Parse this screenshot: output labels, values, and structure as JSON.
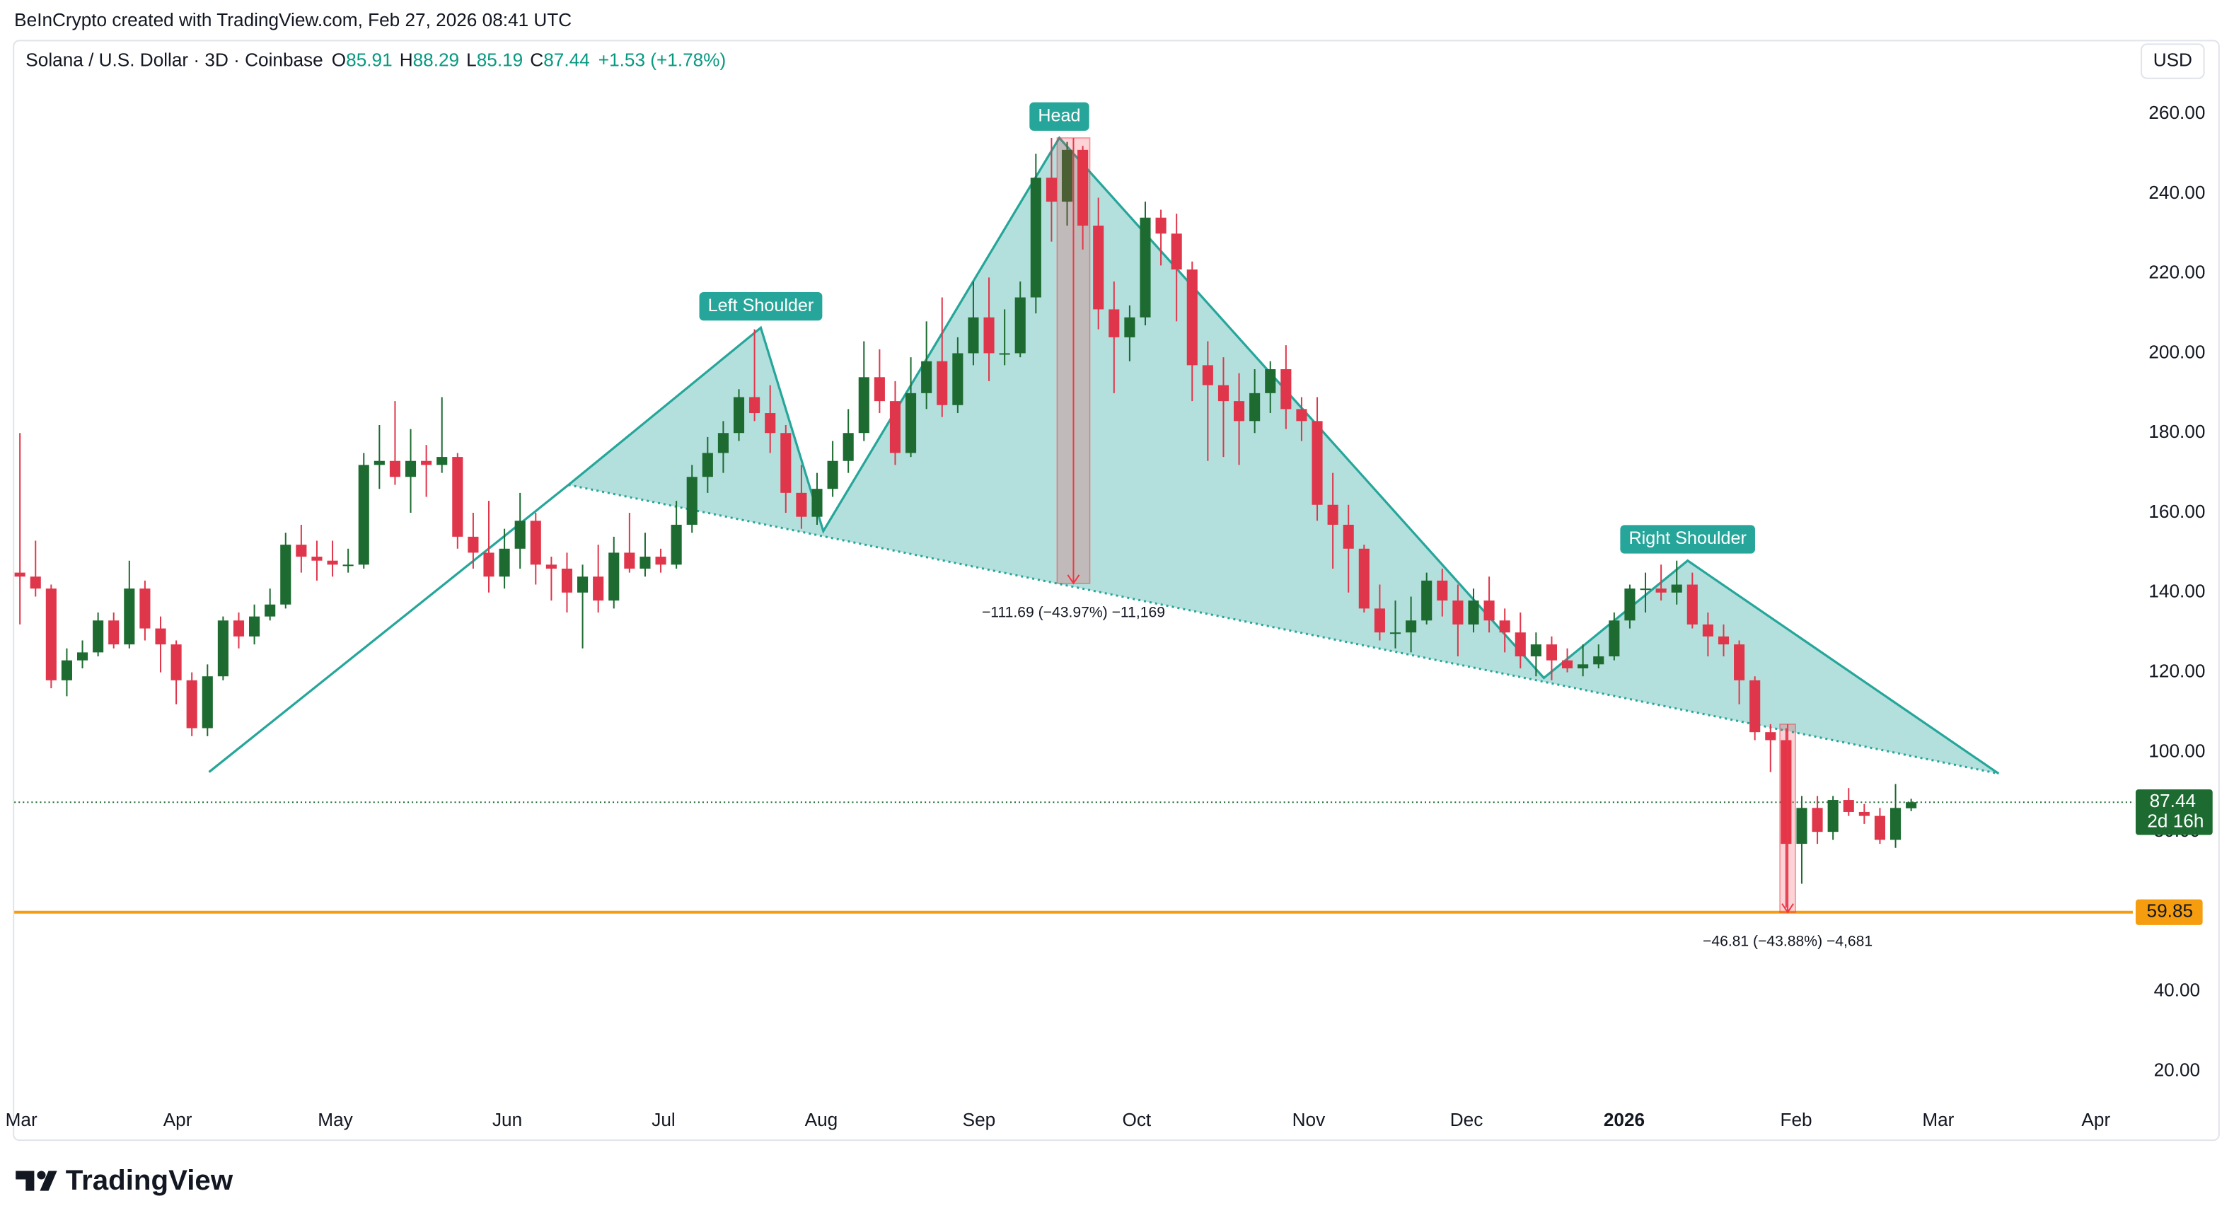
{
  "header": {
    "credit": "BeInCrypto created with TradingView.com, Feb 27, 2026 08:41 UTC",
    "logo": "TradingView"
  },
  "chart_data": {
    "type": "candlestick",
    "symbol": "Solana / U.S. Dollar · 3D · Coinbase",
    "ohlc_keys": [
      "O",
      "H",
      "L",
      "C"
    ],
    "change": "+1.53 (+1.78%)",
    "currency": "USD",
    "up_color": "#1d6b31",
    "down_color": "#e0364b",
    "candles": [
      [
        145,
        180,
        132,
        144
      ],
      [
        144,
        153,
        139,
        141
      ],
      [
        141,
        142,
        116,
        118
      ],
      [
        118,
        126,
        114,
        123
      ],
      [
        123,
        128,
        121,
        125
      ],
      [
        125,
        135,
        124,
        133
      ],
      [
        133,
        135,
        126,
        127
      ],
      [
        127,
        148,
        126,
        141
      ],
      [
        141,
        143,
        128,
        131
      ],
      [
        131,
        134,
        120,
        127
      ],
      [
        127,
        128,
        112,
        118
      ],
      [
        118,
        120,
        104,
        106
      ],
      [
        106,
        122,
        104,
        119
      ],
      [
        119,
        134,
        118,
        133
      ],
      [
        133,
        135,
        126,
        129
      ],
      [
        129,
        137,
        127,
        134
      ],
      [
        134,
        141,
        133,
        137
      ],
      [
        137,
        155,
        136,
        152
      ],
      [
        152,
        157,
        145,
        149
      ],
      [
        149,
        153,
        143,
        148
      ],
      [
        148,
        153,
        144,
        147
      ],
      [
        147,
        151,
        145,
        147
      ],
      [
        147,
        175,
        146,
        172
      ],
      [
        172,
        182,
        166,
        173
      ],
      [
        173,
        188,
        167,
        169
      ],
      [
        169,
        181,
        160,
        173
      ],
      [
        173,
        177,
        164,
        172
      ],
      [
        172,
        189,
        170,
        174
      ],
      [
        174,
        175,
        151,
        154
      ],
      [
        154,
        160,
        146,
        150
      ],
      [
        150,
        163,
        140,
        144
      ],
      [
        144,
        156,
        141,
        151
      ],
      [
        151,
        165,
        146,
        158
      ],
      [
        158,
        160,
        142,
        147
      ],
      [
        147,
        149,
        138,
        146
      ],
      [
        146,
        150,
        135,
        140
      ],
      [
        140,
        147,
        126,
        144
      ],
      [
        144,
        152,
        135,
        138
      ],
      [
        138,
        154,
        136,
        150
      ],
      [
        150,
        160,
        145,
        146
      ],
      [
        146,
        155,
        144,
        149
      ],
      [
        149,
        151,
        145,
        147
      ],
      [
        147,
        163,
        146,
        157
      ],
      [
        157,
        172,
        155,
        169
      ],
      [
        169,
        179,
        165,
        175
      ],
      [
        175,
        183,
        170,
        180
      ],
      [
        180,
        191,
        178,
        189
      ],
      [
        189,
        206,
        183,
        185
      ],
      [
        185,
        192,
        175,
        180
      ],
      [
        180,
        182,
        160,
        165
      ],
      [
        165,
        172,
        156,
        159
      ],
      [
        159,
        170,
        157,
        166
      ],
      [
        166,
        178,
        164,
        173
      ],
      [
        173,
        186,
        170,
        180
      ],
      [
        180,
        203,
        178,
        194
      ],
      [
        194,
        201,
        185,
        188
      ],
      [
        188,
        193,
        172,
        175
      ],
      [
        175,
        199,
        174,
        190
      ],
      [
        190,
        208,
        186,
        198
      ],
      [
        198,
        214,
        184,
        187
      ],
      [
        187,
        204,
        185,
        200
      ],
      [
        200,
        218,
        197,
        209
      ],
      [
        209,
        219,
        193,
        200
      ],
      [
        200,
        211,
        197,
        200
      ],
      [
        200,
        218,
        199,
        214
      ],
      [
        214,
        250,
        210,
        244
      ],
      [
        244,
        254,
        228,
        238
      ],
      [
        238,
        253,
        232,
        251
      ],
      [
        251,
        252,
        226,
        232
      ],
      [
        232,
        239,
        206,
        211
      ],
      [
        211,
        218,
        190,
        204
      ],
      [
        204,
        212,
        198,
        209
      ],
      [
        209,
        238,
        207,
        234
      ],
      [
        234,
        236,
        222,
        230
      ],
      [
        230,
        235,
        208,
        221
      ],
      [
        221,
        223,
        188,
        197
      ],
      [
        197,
        203,
        173,
        192
      ],
      [
        192,
        199,
        174,
        188
      ],
      [
        188,
        195,
        172,
        183
      ],
      [
        183,
        196,
        180,
        190
      ],
      [
        190,
        198,
        185,
        196
      ],
      [
        196,
        202,
        181,
        186
      ],
      [
        186,
        189,
        178,
        183
      ],
      [
        183,
        189,
        158,
        162
      ],
      [
        162,
        170,
        146,
        157
      ],
      [
        157,
        162,
        140,
        151
      ],
      [
        151,
        152,
        135,
        136
      ],
      [
        136,
        142,
        128,
        130
      ],
      [
        130,
        138,
        126,
        130
      ],
      [
        130,
        139,
        125,
        133
      ],
      [
        133,
        145,
        132,
        143
      ],
      [
        143,
        146,
        134,
        138
      ],
      [
        138,
        142,
        124,
        132
      ],
      [
        132,
        141,
        130,
        138
      ],
      [
        138,
        144,
        130,
        133
      ],
      [
        133,
        136,
        125,
        130
      ],
      [
        130,
        135,
        121,
        124
      ],
      [
        124,
        130,
        119,
        127
      ],
      [
        127,
        129,
        118,
        123
      ],
      [
        123,
        126,
        120,
        121
      ],
      [
        121,
        127,
        119,
        122
      ],
      [
        122,
        127,
        121,
        124
      ],
      [
        124,
        135,
        123,
        133
      ],
      [
        133,
        142,
        131,
        141
      ],
      [
        141,
        145,
        135,
        141
      ],
      [
        141,
        147,
        138,
        140
      ],
      [
        140,
        148,
        137,
        142
      ],
      [
        142,
        145,
        131,
        132
      ],
      [
        132,
        135,
        124,
        129
      ],
      [
        129,
        132,
        124,
        127
      ],
      [
        127,
        128,
        112,
        118
      ],
      [
        118,
        119,
        103,
        105
      ],
      [
        105,
        107,
        95,
        103
      ],
      [
        103,
        106,
        61,
        77
      ],
      [
        77,
        89,
        67,
        86
      ],
      [
        86,
        89,
        77,
        80
      ],
      [
        80,
        89,
        78,
        88
      ],
      [
        88,
        91,
        84,
        85
      ],
      [
        85,
        87,
        82,
        84
      ],
      [
        84,
        86,
        77,
        78
      ],
      [
        78,
        92,
        76,
        86
      ],
      [
        85.91,
        88.29,
        85.19,
        87.44
      ]
    ],
    "countdown": "2d 16h",
    "support_level": 59.85,
    "support_color": "#f59d0e",
    "xlim": [
      -0.36,
      135.18
    ],
    "ylim": [
      2.86,
      278.57
    ],
    "xticks": [
      {
        "value": 0.09,
        "label": "Mar"
      },
      {
        "value": 10.09,
        "label": "Apr"
      },
      {
        "value": 20.18,
        "label": "May"
      },
      {
        "value": 31.18,
        "label": "Jun"
      },
      {
        "value": 41.18,
        "label": "Jul"
      },
      {
        "value": 51.27,
        "label": "Aug"
      },
      {
        "value": 61.36,
        "label": "Sep"
      },
      {
        "value": 71.45,
        "label": "Oct"
      },
      {
        "value": 82.45,
        "label": "Nov"
      },
      {
        "value": 92.55,
        "label": "Dec"
      },
      {
        "value": 102.64,
        "label": "2026"
      },
      {
        "value": 113.64,
        "label": "Feb"
      },
      {
        "value": 122.73,
        "label": "Mar"
      },
      {
        "value": 132.82,
        "label": "Apr"
      }
    ],
    "yticks": [
      {
        "value": 20,
        "label": "20.00"
      },
      {
        "value": 40,
        "label": "40.00"
      },
      {
        "value": 60,
        "label": "60.00"
      },
      {
        "value": 80,
        "label": "80.00"
      },
      {
        "value": 100,
        "label": "100.00"
      },
      {
        "value": 120,
        "label": "120.00"
      },
      {
        "value": 140,
        "label": "140.00"
      },
      {
        "value": 160,
        "label": "160.00"
      },
      {
        "value": 180,
        "label": "180.00"
      },
      {
        "value": 200,
        "label": "200.00"
      },
      {
        "value": 220,
        "label": "220.00"
      },
      {
        "value": 240,
        "label": "240.00"
      },
      {
        "value": 260,
        "label": "260.00"
      }
    ],
    "grid": false,
    "pattern": {
      "color": "#26a69a",
      "outline_x": [
        12.1,
        35.1,
        47.4,
        51.4,
        66.5,
        97.5,
        106.7,
        126.6
      ],
      "outline_y": [
        95,
        167,
        206.4,
        155.4,
        254,
        118.6,
        148,
        94.6
      ],
      "labels": [
        {
          "text": "Left Shoulder",
          "x": 47.4,
          "y": 206.4
        },
        {
          "text": "Head",
          "x": 66.5,
          "y": 254
        },
        {
          "text": "Right Shoulder",
          "x": 106.7,
          "y": 148
        }
      ]
    },
    "measurements": [
      {
        "x": [
          66.36,
          68.45
        ],
        "from": 254,
        "to": 142.3,
        "label": "−111.69 (−43.97%) −11,169"
      },
      {
        "x": [
          112.6,
          113.6
        ],
        "from": 107,
        "to": 59.85,
        "label": "−46.81 (−43.88%) −4,681"
      }
    ]
  }
}
